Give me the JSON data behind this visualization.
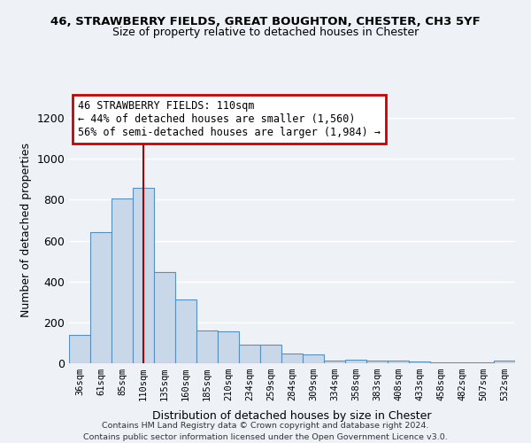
{
  "title_line1": "46, STRAWBERRY FIELDS, GREAT BOUGHTON, CHESTER, CH3 5YF",
  "title_line2": "Size of property relative to detached houses in Chester",
  "xlabel": "Distribution of detached houses by size in Chester",
  "ylabel": "Number of detached properties",
  "categories": [
    "36sqm",
    "61sqm",
    "85sqm",
    "110sqm",
    "135sqm",
    "160sqm",
    "185sqm",
    "210sqm",
    "234sqm",
    "259sqm",
    "284sqm",
    "309sqm",
    "334sqm",
    "358sqm",
    "383sqm",
    "408sqm",
    "433sqm",
    "458sqm",
    "482sqm",
    "507sqm",
    "532sqm"
  ],
  "values": [
    137,
    641,
    808,
    860,
    447,
    310,
    160,
    158,
    90,
    90,
    48,
    42,
    15,
    18,
    14,
    11,
    9,
    5,
    5,
    5,
    12
  ],
  "bar_color": "#c8d8e8",
  "bar_edge_color": "#5590c0",
  "property_index": 3,
  "vline_color": "#aa0000",
  "annotation_text": "46 STRAWBERRY FIELDS: 110sqm\n← 44% of detached houses are smaller (1,560)\n56% of semi-detached houses are larger (1,984) →",
  "annotation_box_color": "#ffffff",
  "annotation_box_edge": "#cc0000",
  "ylim": [
    0,
    1300
  ],
  "yticks": [
    0,
    200,
    400,
    600,
    800,
    1000,
    1200
  ],
  "footer_line1": "Contains HM Land Registry data © Crown copyright and database right 2024.",
  "footer_line2": "Contains public sector information licensed under the Open Government Licence v3.0.",
  "background_color": "#eef2f7",
  "grid_color": "#ffffff"
}
